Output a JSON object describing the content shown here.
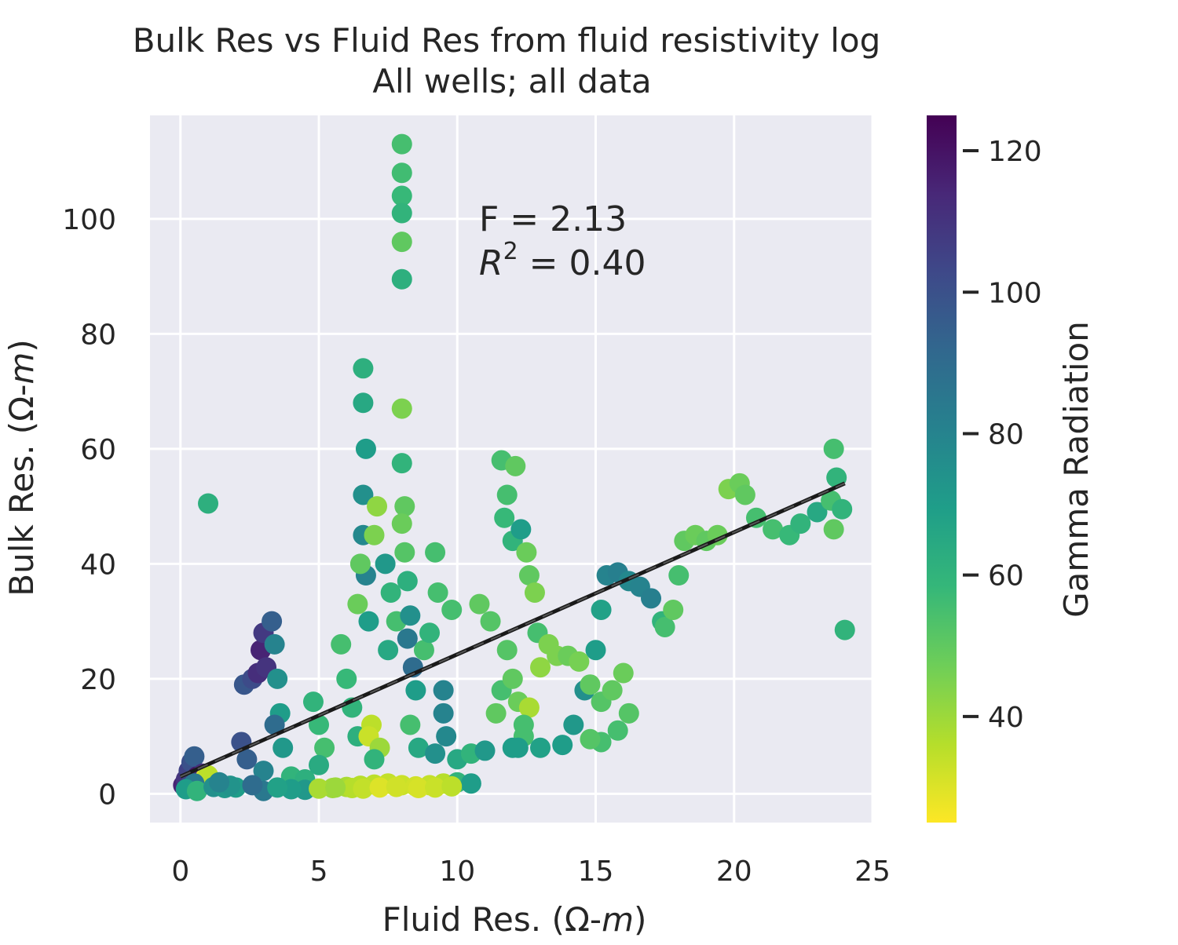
{
  "chart_data": {
    "type": "scatter",
    "title": "Bulk Res vs Fluid Res from fluid resistivity log",
    "subtitle": "All wells; all data",
    "xlabel_prefix": "Fluid Res.  (Ω-",
    "xlabel_italic": "m",
    "xlabel_suffix": ")",
    "ylabel_prefix": "Bulk Res. (Ω-",
    "ylabel_italic": "m",
    "ylabel_suffix": ")",
    "xlim": [
      -1.1,
      25
    ],
    "ylim": [
      -5,
      118
    ],
    "xticks": [
      0,
      5,
      10,
      15,
      20,
      25
    ],
    "yticks": [
      0,
      20,
      40,
      60,
      80,
      100
    ],
    "grid": true,
    "annotation_F": "F = 2.13",
    "annotation_R2_symbol": "R",
    "annotation_R2_exp": "2",
    "annotation_R2_value": " = 0.40",
    "fit_line": {
      "x": [
        0,
        24
      ],
      "y": [
        3.0,
        54.0
      ]
    },
    "colorbar": {
      "label": "Gamma Radiation",
      "min": 25,
      "max": 125,
      "ticks": [
        40,
        60,
        80,
        100,
        120
      ],
      "colormap": "viridis",
      "colors": [
        "#fde725",
        "#b5de2b",
        "#6ece58",
        "#35b779",
        "#1f9e89",
        "#26828e",
        "#31688e",
        "#3e4989",
        "#482878",
        "#440154"
      ]
    },
    "series": [
      {
        "points": [
          [
            0.1,
            1.5,
            115
          ],
          [
            0.2,
            2.5,
            110
          ],
          [
            0.3,
            4.0,
            105
          ],
          [
            0.4,
            5.5,
            100
          ],
          [
            0.5,
            6.5,
            95
          ],
          [
            0.6,
            3.0,
            120
          ],
          [
            0.7,
            2.0,
            118
          ],
          [
            0.8,
            3.5,
            112
          ],
          [
            0.9,
            2.8,
            30
          ],
          [
            1.0,
            3.2,
            35
          ],
          [
            0.3,
            1.0,
            90
          ],
          [
            0.5,
            1.8,
            85
          ],
          [
            0.2,
            0.8,
            70
          ],
          [
            0.6,
            0.5,
            60
          ],
          [
            1.0,
            50.5,
            62
          ],
          [
            1.2,
            1.2,
            75
          ],
          [
            1.6,
            1.0,
            72
          ],
          [
            2.0,
            1.1,
            70
          ],
          [
            2.2,
            9.0,
            100
          ],
          [
            2.4,
            6.0,
            95
          ],
          [
            2.3,
            19.0,
            98
          ],
          [
            2.6,
            20.0,
            102
          ],
          [
            2.8,
            21.0,
            112
          ],
          [
            2.9,
            25.0,
            115
          ],
          [
            3.0,
            28.0,
            108
          ],
          [
            3.1,
            22.0,
            110
          ],
          [
            3.3,
            30.0,
            95
          ],
          [
            3.4,
            26.0,
            80
          ],
          [
            3.5,
            20.0,
            75
          ],
          [
            3.6,
            14.0,
            70
          ],
          [
            3.7,
            8.0,
            72
          ],
          [
            3.4,
            12.0,
            90
          ],
          [
            3.0,
            4.0,
            80
          ],
          [
            3.0,
            0.5,
            85
          ],
          [
            2.6,
            1.5,
            90
          ],
          [
            4.0,
            3.0,
            60
          ],
          [
            4.5,
            2.5,
            62
          ],
          [
            4.8,
            16.0,
            60
          ],
          [
            5.0,
            12.0,
            58
          ],
          [
            5.2,
            8.0,
            55
          ],
          [
            5.0,
            5.0,
            64
          ],
          [
            4.5,
            0.7,
            72
          ],
          [
            5.5,
            1.0,
            40
          ],
          [
            6.0,
            1.2,
            38
          ],
          [
            6.5,
            1.4,
            36
          ],
          [
            7.0,
            1.6,
            35
          ],
          [
            7.5,
            1.8,
            34
          ],
          [
            8.0,
            1.5,
            33
          ],
          [
            8.5,
            1.3,
            32
          ],
          [
            9.0,
            1.5,
            34
          ],
          [
            9.5,
            1.8,
            36
          ],
          [
            10.0,
            2.0,
            60
          ],
          [
            10.5,
            1.8,
            70
          ],
          [
            5.8,
            26.0,
            55
          ],
          [
            6.0,
            20.0,
            58
          ],
          [
            6.2,
            15.0,
            60
          ],
          [
            6.4,
            10.0,
            62
          ],
          [
            6.6,
            74.0,
            62
          ],
          [
            6.6,
            68.0,
            65
          ],
          [
            6.7,
            60.0,
            70
          ],
          [
            6.6,
            52.0,
            75
          ],
          [
            6.6,
            45.0,
            78
          ],
          [
            6.7,
            38.0,
            80
          ],
          [
            6.8,
            30.0,
            70
          ],
          [
            6.5,
            40.0,
            50
          ],
          [
            6.4,
            33.0,
            48
          ],
          [
            7.0,
            45.0,
            45
          ],
          [
            7.1,
            50.0,
            42
          ],
          [
            6.9,
            12.0,
            35
          ],
          [
            6.8,
            10.0,
            33
          ],
          [
            7.2,
            8.0,
            40
          ],
          [
            7.4,
            40.0,
            72
          ],
          [
            7.6,
            35.0,
            60
          ],
          [
            7.8,
            30.0,
            55
          ],
          [
            7.5,
            25.0,
            65
          ],
          [
            7.0,
            6.0,
            60
          ],
          [
            8.0,
            113.0,
            55
          ],
          [
            8.0,
            108.0,
            56
          ],
          [
            8.0,
            104.0,
            58
          ],
          [
            8.0,
            101.0,
            60
          ],
          [
            8.0,
            96.0,
            50
          ],
          [
            8.0,
            89.5,
            62
          ],
          [
            8.0,
            67.0,
            45
          ],
          [
            8.0,
            57.5,
            60
          ],
          [
            8.1,
            50.0,
            50
          ],
          [
            8.0,
            47.0,
            48
          ],
          [
            8.1,
            42.0,
            52
          ],
          [
            8.2,
            37.0,
            62
          ],
          [
            8.3,
            31.0,
            75
          ],
          [
            8.2,
            27.0,
            85
          ],
          [
            8.4,
            22.0,
            90
          ],
          [
            8.5,
            18.0,
            70
          ],
          [
            8.3,
            12.0,
            55
          ],
          [
            8.6,
            8.0,
            65
          ],
          [
            8.8,
            25.0,
            55
          ],
          [
            9.0,
            28.0,
            60
          ],
          [
            9.3,
            35.0,
            55
          ],
          [
            9.2,
            42.0,
            55
          ],
          [
            9.8,
            32.0,
            55
          ],
          [
            9.5,
            18.0,
            80
          ],
          [
            9.5,
            14.0,
            80
          ],
          [
            9.6,
            10.0,
            78
          ],
          [
            9.2,
            7.0,
            75
          ],
          [
            10.0,
            6.0,
            65
          ],
          [
            10.5,
            7.0,
            60
          ],
          [
            10.8,
            33.0,
            50
          ],
          [
            11.2,
            30.0,
            52
          ],
          [
            11.4,
            14.0,
            50
          ],
          [
            11.6,
            18.0,
            55
          ],
          [
            11.8,
            25.0,
            52
          ],
          [
            12.0,
            20.0,
            50
          ],
          [
            12.2,
            16.0,
            48
          ],
          [
            12.4,
            10.0,
            55
          ],
          [
            11.6,
            58.0,
            55
          ],
          [
            11.8,
            52.0,
            55
          ],
          [
            11.7,
            48.0,
            58
          ],
          [
            12.1,
            57.0,
            50
          ],
          [
            12.0,
            44.0,
            60
          ],
          [
            12.3,
            46.0,
            70
          ],
          [
            12.5,
            42.0,
            48
          ],
          [
            12.6,
            38.0,
            50
          ],
          [
            12.8,
            35.0,
            45
          ],
          [
            12.9,
            28.0,
            55
          ],
          [
            13.0,
            22.0,
            42
          ],
          [
            12.6,
            15.0,
            38
          ],
          [
            12.4,
            12.0,
            55
          ],
          [
            12.2,
            8.0,
            70
          ],
          [
            11.0,
            7.5,
            72
          ],
          [
            12.0,
            8.0,
            70
          ],
          [
            13.0,
            8.0,
            68
          ],
          [
            13.8,
            8.5,
            70
          ],
          [
            14.2,
            12.0,
            72
          ],
          [
            14.6,
            18.0,
            75
          ],
          [
            15.0,
            25.0,
            70
          ],
          [
            15.2,
            32.0,
            68
          ],
          [
            15.4,
            38.0,
            80
          ],
          [
            15.8,
            38.5,
            82
          ],
          [
            16.2,
            37.0,
            78
          ],
          [
            16.6,
            36.0,
            80
          ],
          [
            17.0,
            34.0,
            82
          ],
          [
            17.4,
            30.0,
            60
          ],
          [
            17.5,
            29.0,
            55
          ],
          [
            17.8,
            32.0,
            50
          ],
          [
            18.0,
            38.0,
            55
          ],
          [
            18.2,
            44.0,
            50
          ],
          [
            18.6,
            45.0,
            48
          ],
          [
            19.0,
            44.0,
            50
          ],
          [
            19.4,
            45.0,
            48
          ],
          [
            19.8,
            53.0,
            45
          ],
          [
            20.2,
            54.0,
            48
          ],
          [
            20.4,
            52.0,
            50
          ],
          [
            20.8,
            48.0,
            55
          ],
          [
            21.4,
            46.0,
            55
          ],
          [
            22.0,
            45.0,
            58
          ],
          [
            22.4,
            47.0,
            60
          ],
          [
            23.0,
            49.0,
            65
          ],
          [
            23.5,
            51.0,
            55
          ],
          [
            23.6,
            60.0,
            55
          ],
          [
            23.7,
            55.0,
            60
          ],
          [
            23.6,
            46.0,
            50
          ],
          [
            23.9,
            49.5,
            60
          ],
          [
            24.0,
            28.5,
            60
          ],
          [
            13.3,
            26.0,
            45
          ],
          [
            13.6,
            24.0,
            45
          ],
          [
            14.0,
            24.0,
            48
          ],
          [
            14.4,
            23.0,
            46
          ],
          [
            14.8,
            19.0,
            50
          ],
          [
            15.2,
            16.0,
            52
          ],
          [
            15.6,
            18.0,
            50
          ],
          [
            16.0,
            21.0,
            48
          ],
          [
            16.2,
            14.0,
            52
          ],
          [
            15.8,
            11.0,
            55
          ],
          [
            15.2,
            9.0,
            55
          ],
          [
            14.8,
            9.5,
            52
          ],
          [
            6.2,
            1.0,
            36
          ],
          [
            6.6,
            0.9,
            34
          ],
          [
            7.2,
            1.1,
            30
          ],
          [
            7.8,
            1.2,
            32
          ],
          [
            8.6,
            1.0,
            31
          ],
          [
            9.2,
            1.1,
            33
          ],
          [
            9.8,
            1.3,
            35
          ],
          [
            5.0,
            0.9,
            38
          ],
          [
            5.6,
            1.1,
            40
          ],
          [
            4.0,
            0.8,
            70
          ],
          [
            3.5,
            1.1,
            68
          ],
          [
            1.8,
            1.4,
            74
          ],
          [
            1.4,
            2.0,
            80
          ]
        ]
      }
    ]
  }
}
